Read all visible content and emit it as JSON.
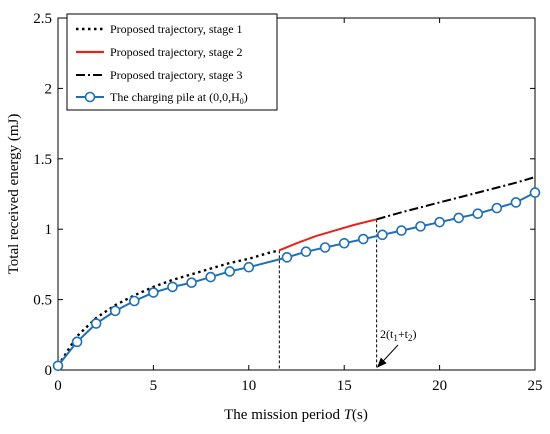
{
  "chart_data": {
    "type": "line",
    "xlabel_prefix": "The mission period ",
    "xlabel_var": "T",
    "xlabel_suffix": "(s)",
    "ylabel": "Total received energy (mJ)",
    "xlim": [
      0,
      25
    ],
    "ylim": [
      0,
      2.5
    ],
    "x_ticks": [
      0,
      5,
      10,
      15,
      20,
      25
    ],
    "y_ticks": [
      0,
      0.5,
      1,
      1.5,
      2,
      2.5
    ],
    "x_tick_labels": [
      "0",
      "5",
      "10",
      "15",
      "20",
      "25"
    ],
    "y_tick_labels": [
      "0",
      "0.5",
      "1",
      "1.5",
      "2",
      "2.5"
    ],
    "grid": false,
    "legend_position": "top-left",
    "series": [
      {
        "name": "Proposed trajectory, stage 1",
        "style": "dotted",
        "color": "#000000",
        "x": [
          0,
          1,
          2,
          3,
          4,
          5,
          6,
          7,
          8,
          9,
          10,
          11,
          11.6
        ],
        "y": [
          0.03,
          0.24,
          0.37,
          0.46,
          0.53,
          0.59,
          0.64,
          0.68,
          0.72,
          0.76,
          0.79,
          0.83,
          0.85
        ]
      },
      {
        "name": "Proposed trajectory, stage 2",
        "style": "solid",
        "color": "#e8231b",
        "x": [
          11.6,
          12.5,
          13.5,
          14.5,
          15.5,
          16.7
        ],
        "y": [
          0.85,
          0.9,
          0.95,
          0.99,
          1.03,
          1.07
        ]
      },
      {
        "name": "Proposed trajectory, stage 3",
        "style": "dashdot",
        "color": "#000000",
        "x": [
          16.7,
          18,
          20,
          22,
          24,
          25
        ],
        "y": [
          1.07,
          1.12,
          1.19,
          1.26,
          1.33,
          1.37
        ]
      },
      {
        "name_prefix": "The charging pile at (0,0,H",
        "name_sub": "0",
        "name_suffix": ")",
        "style": "solid-circle-markers",
        "color": "#1f6fb8",
        "x": [
          0,
          1,
          2,
          3,
          4,
          5,
          6,
          7,
          8,
          9,
          10,
          12,
          13,
          14,
          15,
          16,
          17,
          18,
          19,
          20,
          21,
          22,
          23,
          24,
          25
        ],
        "y": [
          0.03,
          0.2,
          0.33,
          0.42,
          0.49,
          0.55,
          0.59,
          0.62,
          0.66,
          0.7,
          0.73,
          0.8,
          0.84,
          0.87,
          0.9,
          0.93,
          0.96,
          0.99,
          1.02,
          1.05,
          1.08,
          1.11,
          1.15,
          1.19,
          1.26
        ]
      }
    ],
    "vlines": [
      {
        "x": 11.6,
        "y_top": 0.85
      },
      {
        "x": 16.7,
        "y_top": 1.07
      }
    ],
    "annotation": {
      "text_prefix": "2(t",
      "sub1": "1",
      "text_mid": "+t",
      "sub2": "2",
      "text_suffix": ")",
      "points_to": {
        "x": 16.7,
        "y": 0
      }
    }
  },
  "colors": {
    "stage2": "#e8231b",
    "charging_pile": "#1f6fb8",
    "axis": "#000000"
  }
}
